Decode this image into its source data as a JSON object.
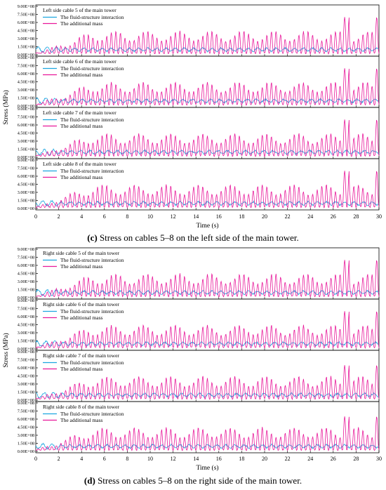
{
  "chart_data": [
    {
      "type": "line",
      "group": "c",
      "xlabel": "Time (s)",
      "ylabel": "Stress (MPa)",
      "xlim": [
        0,
        30
      ],
      "ylim": [
        0,
        900000000
      ],
      "x_ticks": [
        "0",
        "2",
        "4",
        "6",
        "8",
        "10",
        "12",
        "14",
        "16",
        "18",
        "20",
        "22",
        "24",
        "26",
        "28",
        "30"
      ],
      "y_ticks": [
        "0.00E+00",
        "1.50E+08",
        "3.00E+08",
        "4.50E+08",
        "6.00E+08",
        "7.50E+08",
        "9.00E+08"
      ],
      "series_colors": [
        "#1ca6e0",
        "#e8179a"
      ],
      "panels": [
        {
          "title": "Left side cable 5 of the main tower",
          "series": [
            {
              "name": "The fluid-structure interaction",
              "mean": 95000000,
              "amplitude": 70000000
            },
            {
              "name": "The additional mass",
              "peak_max": 700000000,
              "peak_typical": 420000000
            }
          ]
        },
        {
          "title": "Left side cable 6 of the main tower",
          "series": [
            {
              "name": "The fluid-structure interaction",
              "mean": 95000000,
              "amplitude": 70000000
            },
            {
              "name": "The additional mass",
              "peak_max": 700000000,
              "peak_typical": 420000000
            }
          ]
        },
        {
          "title": "Left side cable 7 of the main tower",
          "series": [
            {
              "name": "The fluid-structure interaction",
              "mean": 95000000,
              "amplitude": 70000000
            },
            {
              "name": "The additional mass",
              "peak_max": 700000000,
              "peak_typical": 420000000
            }
          ]
        },
        {
          "title": "Left side cable 8 of the main tower",
          "series": [
            {
              "name": "The fluid-structure interaction",
              "mean": 95000000,
              "amplitude": 70000000
            },
            {
              "name": "The additional mass",
              "peak_max": 700000000,
              "peak_typical": 420000000
            }
          ]
        }
      ]
    },
    {
      "type": "line",
      "group": "d",
      "xlabel": "Time (s)",
      "ylabel": "Stress (MPa)",
      "xlim": [
        0,
        30
      ],
      "ylim": [
        0,
        900000000
      ],
      "x_ticks": [
        "0",
        "2",
        "4",
        "6",
        "8",
        "10",
        "12",
        "14",
        "16",
        "18",
        "20",
        "22",
        "24",
        "26",
        "28",
        "30"
      ],
      "y_ticks": [
        "0.00E+00",
        "1.50E+08",
        "3.00E+08",
        "4.50E+08",
        "6.00E+08",
        "7.50E+08",
        "9.00E+08"
      ],
      "series_colors": [
        "#1ca6e0",
        "#e8179a"
      ],
      "panels": [
        {
          "title": "Right side cable 5 of the main tower",
          "series": [
            {
              "name": "The fluid-structure interaction",
              "mean": 95000000,
              "amplitude": 70000000
            },
            {
              "name": "The additional mass",
              "peak_max": 700000000,
              "peak_typical": 420000000
            }
          ]
        },
        {
          "title": "Right side cable 6 of the main tower",
          "series": [
            {
              "name": "The fluid-structure interaction",
              "mean": 95000000,
              "amplitude": 70000000
            },
            {
              "name": "The additional mass",
              "peak_max": 700000000,
              "peak_typical": 420000000
            }
          ]
        },
        {
          "title": "Right side cable 7 of the main tower",
          "series": [
            {
              "name": "The fluid-structure interaction",
              "mean": 95000000,
              "amplitude": 70000000
            },
            {
              "name": "The additional mass",
              "peak_max": 650000000,
              "peak_typical": 420000000
            }
          ]
        },
        {
          "title": "Right side cable 8 of the main tower",
          "series": [
            {
              "name": "The fluid-structure interaction",
              "mean": 95000000,
              "amplitude": 70000000
            },
            {
              "name": "The additional mass",
              "peak_max": 650000000,
              "peak_typical": 420000000
            }
          ]
        }
      ]
    }
  ],
  "captions": [
    {
      "letter": "(c)",
      "text": " Stress on cables 5–8 on the left side of the main tower."
    },
    {
      "letter": "(d)",
      "text": " Stress on cables 5–8 on the right side of the main tower."
    }
  ]
}
